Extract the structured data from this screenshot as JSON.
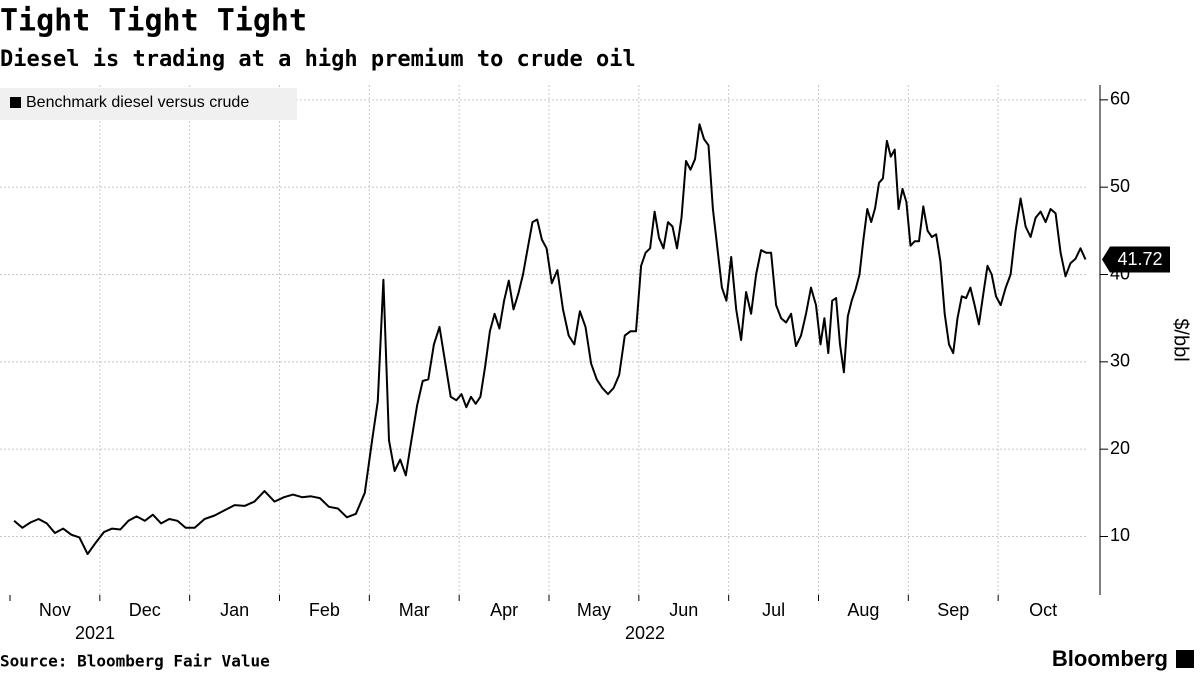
{
  "chart_data": {
    "type": "line",
    "title": "Tight Tight Tight",
    "subtitle": "Diesel is trading at a high premium to crude oil",
    "source": "Source: Bloomberg Fair Value",
    "brand": "Bloomberg",
    "y_label": "$/bbl",
    "ylim": [
      3.3,
      61.7
    ],
    "yticks": [
      10,
      20,
      30,
      40,
      50,
      60
    ],
    "grid": true,
    "legend": "top-left",
    "xticks": [
      "Nov",
      "Dec",
      "Jan",
      "Feb",
      "Mar",
      "Apr",
      "May",
      "Jun",
      "Jul",
      "Aug",
      "Sep",
      "Oct"
    ],
    "year_labels": [
      "2021",
      "2022"
    ],
    "x": [
      "2021-11",
      "2021-11",
      "2021-11",
      "2021-11",
      "2021-11",
      "2021-11",
      "2021-11",
      "2021-11",
      "2021-11",
      "2021-11",
      "2021-11",
      "2021-12",
      "2021-12",
      "2021-12",
      "2021-12",
      "2021-12",
      "2021-12",
      "2021-12",
      "2021-12",
      "2021-12",
      "2021-12",
      "2021-12",
      "2022-01",
      "2022-01",
      "2022-01",
      "2022-01",
      "2022-01",
      "2022-01",
      "2022-01",
      "2022-01",
      "2022-01",
      "2022-02",
      "2022-02",
      "2022-02",
      "2022-02",
      "2022-02",
      "2022-02",
      "2022-02",
      "2022-02",
      "2022-02",
      "2022-02",
      "2022-03",
      "2022-03",
      "2022-03",
      "2022-03",
      "2022-03",
      "2022-03",
      "2022-03",
      "2022-03",
      "2022-03",
      "2022-03",
      "2022-03",
      "2022-03",
      "2022-03",
      "2022-03",
      "2022-03",
      "2022-03",
      "2022-04",
      "2022-04",
      "2022-04",
      "2022-04",
      "2022-04",
      "2022-04",
      "2022-04",
      "2022-04",
      "2022-04",
      "2022-04",
      "2022-04",
      "2022-04",
      "2022-04",
      "2022-04",
      "2022-04",
      "2022-04",
      "2022-04",
      "2022-04",
      "2022-04",
      "2022-05",
      "2022-05",
      "2022-05",
      "2022-05",
      "2022-05",
      "2022-05",
      "2022-05",
      "2022-05",
      "2022-05",
      "2022-05",
      "2022-05",
      "2022-05",
      "2022-05",
      "2022-05",
      "2022-05",
      "2022-05",
      "2022-06",
      "2022-06",
      "2022-06",
      "2022-06",
      "2022-06",
      "2022-06",
      "2022-06",
      "2022-06",
      "2022-06",
      "2022-06",
      "2022-06",
      "2022-06",
      "2022-06",
      "2022-06",
      "2022-06",
      "2022-06",
      "2022-06",
      "2022-06",
      "2022-06",
      "2022-06",
      "2022-07",
      "2022-07",
      "2022-07",
      "2022-07",
      "2022-07",
      "2022-07",
      "2022-07",
      "2022-07",
      "2022-07",
      "2022-07",
      "2022-07",
      "2022-07",
      "2022-07",
      "2022-07",
      "2022-07",
      "2022-07",
      "2022-07",
      "2022-07",
      "2022-08",
      "2022-08",
      "2022-08",
      "2022-08",
      "2022-08",
      "2022-08",
      "2022-08",
      "2022-08",
      "2022-08",
      "2022-08",
      "2022-08",
      "2022-08",
      "2022-08",
      "2022-08",
      "2022-08",
      "2022-08",
      "2022-08",
      "2022-08",
      "2022-08",
      "2022-08",
      "2022-08",
      "2022-08",
      "2022-08",
      "2022-09",
      "2022-09",
      "2022-09",
      "2022-09",
      "2022-09",
      "2022-09",
      "2022-09",
      "2022-09",
      "2022-09",
      "2022-09",
      "2022-09",
      "2022-09",
      "2022-09",
      "2022-09",
      "2022-09",
      "2022-09",
      "2022-09",
      "2022-09",
      "2022-09",
      "2022-09",
      "2022-09",
      "2022-10",
      "2022-10",
      "2022-10",
      "2022-10",
      "2022-10",
      "2022-10",
      "2022-10",
      "2022-10",
      "2022-10",
      "2022-10",
      "2022-10",
      "2022-10",
      "2022-10",
      "2022-10",
      "2022-10",
      "2022-10",
      "2022-10",
      "2022-10"
    ],
    "series": [
      {
        "name": "Benchmark diesel versus crude",
        "color": "#000000",
        "end_label": "41.72",
        "values": [
          11.8,
          11.0,
          11.6,
          12.0,
          11.5,
          10.4,
          10.9,
          10.2,
          9.9,
          8.0,
          9.3,
          10.5,
          10.9,
          10.8,
          11.8,
          12.3,
          11.8,
          12.5,
          11.5,
          12.0,
          11.8,
          11.0,
          11.0,
          12.0,
          12.4,
          13.0,
          13.6,
          13.5,
          14.0,
          15.2,
          14.0,
          14.5,
          14.8,
          14.5,
          14.6,
          14.4,
          13.4,
          13.2,
          12.2,
          12.6,
          15.0,
          21.0,
          25.5,
          39.4,
          21.0,
          17.5,
          18.8,
          17.0,
          21.0,
          25.0,
          27.8,
          28.0,
          32.0,
          34.0,
          30.0,
          26.0,
          25.6,
          26.3,
          24.8,
          26.0,
          25.2,
          26.0,
          29.5,
          33.5,
          35.5,
          33.8,
          37.0,
          39.3,
          36.0,
          37.8,
          40.0,
          43.0,
          46.0,
          46.3,
          44.0,
          43.0,
          39.0,
          40.5,
          36.0,
          33.0,
          32.0,
          35.8,
          34.0,
          29.8,
          28.0,
          27.0,
          26.3,
          27.0,
          28.5,
          33.0,
          33.5,
          33.5,
          41.0,
          42.5,
          43.0,
          47.2,
          44.2,
          43.0,
          46.0,
          45.5,
          43.0,
          46.5,
          53.0,
          52.0,
          53.2,
          57.2,
          55.5,
          54.8,
          47.5,
          43.0,
          38.5,
          37.0,
          42.0,
          36.0,
          32.5,
          38.0,
          35.5,
          40.0,
          42.8,
          42.5,
          42.5,
          36.5,
          35.0,
          34.5,
          35.5,
          31.8,
          33.0,
          35.5,
          38.5,
          36.5,
          32.0,
          35.0,
          31.0,
          37.0,
          37.3,
          32.0,
          28.8,
          35.2,
          37.0,
          38.3,
          40.0,
          44.0,
          47.5,
          46.0,
          47.6,
          50.5,
          51.0,
          55.3,
          53.5,
          54.3,
          47.5,
          49.8,
          48.3,
          43.3,
          43.8,
          43.8,
          47.8,
          45.0,
          44.3,
          44.6,
          41.5,
          35.5,
          32.0,
          31.0,
          35.0,
          37.5,
          37.3,
          38.5,
          36.5,
          34.3,
          37.7,
          41.0,
          40.0,
          37.5,
          36.5,
          38.5,
          40.0,
          45.0,
          48.7,
          45.5,
          44.3,
          46.5,
          47.2,
          46.0,
          47.5,
          47.0,
          42.5,
          39.8,
          41.3,
          41.8,
          43.0,
          41.72
        ]
      }
    ]
  }
}
